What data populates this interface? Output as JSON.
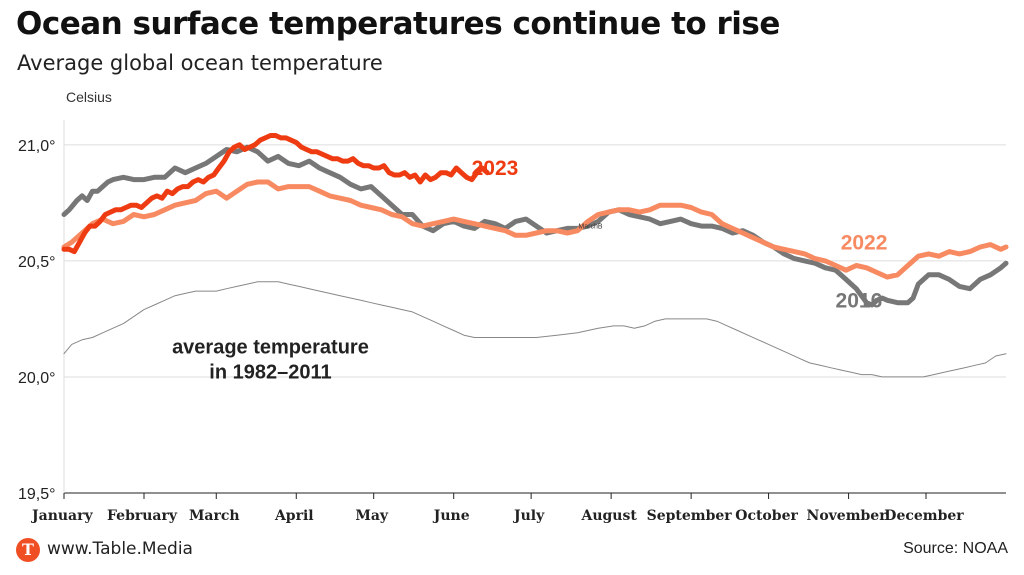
{
  "header": {
    "title": "Ocean surface temperatures continue to rise",
    "subtitle": "Average global ocean temperature"
  },
  "footer": {
    "logo_letter": "T",
    "site": "www.Table.Media",
    "source": "Source: NOAA"
  },
  "chart_data": {
    "type": "line",
    "ylabel": "Celsius",
    "ylim": [
      19.5,
      21.15
    ],
    "yticks": [
      {
        "value": 19.5,
        "label": "19,5°"
      },
      {
        "value": 20.0,
        "label": "20,0°"
      },
      {
        "value": 20.5,
        "label": "20,5°"
      },
      {
        "value": 21.0,
        "label": "21,0°"
      }
    ],
    "x_unit": "day-of-year",
    "xlim": [
      1,
      366
    ],
    "months": [
      {
        "label": "January",
        "day": 1
      },
      {
        "label": "February",
        "day": 32
      },
      {
        "label": "March",
        "day": 60
      },
      {
        "label": "April",
        "day": 91
      },
      {
        "label": "May",
        "day": 121
      },
      {
        "label": "June",
        "day": 152
      },
      {
        "label": "July",
        "day": 182
      },
      {
        "label": "August",
        "day": 213
      },
      {
        "label": "September",
        "day": 244
      },
      {
        "label": "October",
        "day": 274
      },
      {
        "label": "November",
        "day": 305
      },
      {
        "label": "December",
        "day": 335
      }
    ],
    "grid": "horizontal",
    "annotations": [
      {
        "text": "MarchB",
        "x": 205,
        "y": 20.64
      }
    ],
    "series": [
      {
        "name": "average temperature in 1982–2011",
        "label_lines": [
          "average temperature",
          "in 1982–2011"
        ],
        "label_pos": {
          "x": 81,
          "y": 20.1
        },
        "color": "#888888",
        "width": 1,
        "x": [
          1,
          4,
          8,
          12,
          16,
          20,
          24,
          28,
          32,
          36,
          40,
          44,
          48,
          52,
          56,
          60,
          64,
          68,
          72,
          76,
          80,
          84,
          88,
          92,
          96,
          100,
          104,
          108,
          112,
          116,
          120,
          124,
          128,
          132,
          136,
          140,
          144,
          148,
          152,
          156,
          160,
          168,
          176,
          184,
          192,
          200,
          208,
          214,
          218,
          222,
          226,
          230,
          234,
          238,
          242,
          246,
          250,
          254,
          258,
          262,
          266,
          270,
          274,
          278,
          282,
          286,
          290,
          294,
          298,
          302,
          306,
          310,
          314,
          318,
          322,
          326,
          330,
          334,
          338,
          342,
          346,
          350,
          354,
          358,
          362,
          366
        ],
        "y": [
          20.1,
          20.14,
          20.16,
          20.17,
          20.19,
          20.21,
          20.23,
          20.26,
          20.29,
          20.31,
          20.33,
          20.35,
          20.36,
          20.37,
          20.37,
          20.37,
          20.38,
          20.39,
          20.4,
          20.41,
          20.41,
          20.41,
          20.4,
          20.39,
          20.38,
          20.37,
          20.36,
          20.35,
          20.34,
          20.33,
          20.32,
          20.31,
          20.3,
          20.29,
          20.28,
          20.26,
          20.24,
          20.22,
          20.2,
          20.18,
          20.17,
          20.17,
          20.17,
          20.17,
          20.18,
          20.19,
          20.21,
          20.22,
          20.22,
          20.21,
          20.22,
          20.24,
          20.25,
          20.25,
          20.25,
          20.25,
          20.25,
          20.24,
          20.22,
          20.2,
          20.18,
          20.16,
          20.14,
          20.12,
          20.1,
          20.08,
          20.06,
          20.05,
          20.04,
          20.03,
          20.02,
          20.01,
          20.01,
          20.0,
          20.0,
          20.0,
          20.0,
          20.0,
          20.01,
          20.02,
          20.03,
          20.04,
          20.05,
          20.06,
          20.09,
          20.1
        ]
      },
      {
        "name": "2016",
        "label_pos": {
          "x": 309,
          "y": 20.3
        },
        "color": "#777777",
        "width": 5,
        "x": [
          1,
          3,
          6,
          8,
          10,
          12,
          14,
          16,
          18,
          20,
          24,
          28,
          32,
          36,
          40,
          44,
          48,
          52,
          56,
          60,
          64,
          68,
          72,
          76,
          80,
          84,
          88,
          92,
          96,
          100,
          104,
          108,
          112,
          116,
          120,
          124,
          128,
          132,
          136,
          140,
          144,
          148,
          152,
          156,
          160,
          164,
          168,
          172,
          176,
          180,
          184,
          188,
          192,
          196,
          200,
          204,
          208,
          212,
          216,
          220,
          224,
          228,
          232,
          236,
          240,
          244,
          248,
          252,
          256,
          260,
          264,
          268,
          272,
          276,
          280,
          284,
          288,
          292,
          296,
          300,
          304,
          306,
          308,
          310,
          312,
          314,
          316,
          318,
          320,
          324,
          328,
          330,
          332,
          336,
          340,
          344,
          348,
          352,
          356,
          360,
          364,
          366
        ],
        "y": [
          20.7,
          20.72,
          20.76,
          20.78,
          20.76,
          20.8,
          20.8,
          20.82,
          20.84,
          20.85,
          20.86,
          20.85,
          20.85,
          20.86,
          20.86,
          20.9,
          20.88,
          20.9,
          20.92,
          20.95,
          20.98,
          20.97,
          20.99,
          20.97,
          20.93,
          20.95,
          20.92,
          20.91,
          20.93,
          20.9,
          20.88,
          20.86,
          20.83,
          20.81,
          20.82,
          20.78,
          20.74,
          20.7,
          20.7,
          20.65,
          20.63,
          20.66,
          20.67,
          20.65,
          20.64,
          20.67,
          20.66,
          20.64,
          20.67,
          20.68,
          20.65,
          20.62,
          20.63,
          20.64,
          20.64,
          20.65,
          20.67,
          20.71,
          20.72,
          20.7,
          20.69,
          20.68,
          20.66,
          20.67,
          20.68,
          20.66,
          20.65,
          20.65,
          20.64,
          20.62,
          20.63,
          20.61,
          20.58,
          20.56,
          20.53,
          20.51,
          20.5,
          20.49,
          20.47,
          20.46,
          20.42,
          20.4,
          20.38,
          20.35,
          20.32,
          20.31,
          20.33,
          20.34,
          20.33,
          20.32,
          20.32,
          20.34,
          20.4,
          20.44,
          20.44,
          20.42,
          20.39,
          20.38,
          20.42,
          20.44,
          20.47,
          20.49
        ]
      },
      {
        "name": "2022",
        "label_pos": {
          "x": 311,
          "y": 20.55
        },
        "color": "#f88a62",
        "width": 5,
        "x": [
          1,
          4,
          8,
          12,
          16,
          20,
          24,
          28,
          32,
          36,
          40,
          44,
          48,
          52,
          56,
          60,
          64,
          68,
          72,
          76,
          80,
          84,
          88,
          92,
          96,
          100,
          104,
          108,
          112,
          116,
          120,
          124,
          128,
          132,
          136,
          140,
          144,
          148,
          152,
          156,
          160,
          164,
          168,
          172,
          176,
          180,
          184,
          188,
          192,
          196,
          200,
          204,
          208,
          212,
          216,
          220,
          224,
          228,
          232,
          236,
          240,
          244,
          248,
          252,
          256,
          260,
          264,
          268,
          272,
          276,
          280,
          284,
          288,
          292,
          296,
          300,
          304,
          308,
          312,
          316,
          320,
          324,
          328,
          332,
          336,
          340,
          344,
          348,
          352,
          356,
          360,
          364,
          366
        ],
        "y": [
          20.56,
          20.58,
          20.62,
          20.66,
          20.68,
          20.66,
          20.67,
          20.7,
          20.69,
          20.7,
          20.72,
          20.74,
          20.75,
          20.76,
          20.79,
          20.8,
          20.77,
          20.8,
          20.83,
          20.84,
          20.84,
          20.81,
          20.82,
          20.82,
          20.82,
          20.8,
          20.78,
          20.77,
          20.76,
          20.74,
          20.73,
          20.72,
          20.7,
          20.69,
          20.66,
          20.65,
          20.66,
          20.67,
          20.68,
          20.67,
          20.66,
          20.65,
          20.64,
          20.63,
          20.61,
          20.61,
          20.62,
          20.63,
          20.63,
          20.62,
          20.63,
          20.67,
          20.7,
          20.71,
          20.72,
          20.72,
          20.71,
          20.72,
          20.74,
          20.74,
          20.74,
          20.73,
          20.71,
          20.7,
          20.66,
          20.64,
          20.62,
          20.6,
          20.58,
          20.56,
          20.55,
          20.54,
          20.53,
          20.51,
          20.5,
          20.48,
          20.46,
          20.48,
          20.47,
          20.45,
          20.43,
          20.44,
          20.48,
          20.52,
          20.53,
          20.52,
          20.54,
          20.53,
          20.54,
          20.56,
          20.57,
          20.55,
          20.56
        ]
      },
      {
        "name": "2023",
        "label_pos": {
          "x": 168,
          "y": 20.87
        },
        "color": "#ee3b12",
        "width": 5,
        "x": [
          1,
          3,
          5,
          7,
          9,
          11,
          13,
          15,
          17,
          19,
          21,
          23,
          25,
          27,
          29,
          31,
          33,
          35,
          37,
          39,
          41,
          43,
          45,
          47,
          49,
          51,
          53,
          55,
          57,
          59,
          61,
          63,
          65,
          67,
          69,
          71,
          73,
          75,
          77,
          79,
          81,
          83,
          85,
          87,
          89,
          91,
          93,
          95,
          97,
          99,
          101,
          103,
          105,
          107,
          109,
          111,
          113,
          115,
          117,
          119,
          121,
          123,
          125,
          127,
          129,
          131,
          133,
          135,
          137,
          139,
          141,
          143,
          145,
          147,
          149,
          151,
          153,
          155,
          157,
          159,
          161,
          163,
          165
        ],
        "y": [
          20.55,
          20.55,
          20.54,
          20.58,
          20.62,
          20.65,
          20.65,
          20.67,
          20.7,
          20.71,
          20.72,
          20.72,
          20.73,
          20.74,
          20.74,
          20.73,
          20.75,
          20.77,
          20.78,
          20.77,
          20.8,
          20.79,
          20.81,
          20.82,
          20.82,
          20.84,
          20.85,
          20.84,
          20.86,
          20.87,
          20.9,
          20.93,
          20.97,
          20.99,
          21.0,
          20.98,
          20.99,
          21.0,
          21.02,
          21.03,
          21.04,
          21.04,
          21.03,
          21.03,
          21.02,
          21.01,
          20.99,
          20.98,
          20.97,
          20.97,
          20.96,
          20.95,
          20.94,
          20.94,
          20.93,
          20.93,
          20.94,
          20.92,
          20.91,
          20.91,
          20.9,
          20.9,
          20.91,
          20.88,
          20.87,
          20.87,
          20.88,
          20.86,
          20.87,
          20.84,
          20.87,
          20.85,
          20.86,
          20.88,
          20.88,
          20.87,
          20.9,
          20.88,
          20.86,
          20.85,
          20.88,
          20.9,
          20.88
        ]
      }
    ]
  }
}
